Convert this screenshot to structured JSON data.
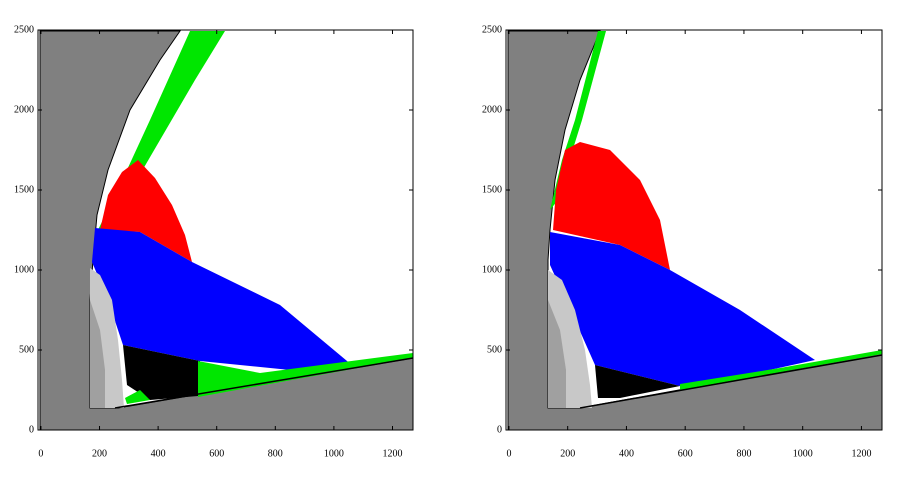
{
  "chart_data": [
    {
      "type": "region",
      "xlim": [
        -10,
        1270
      ],
      "ylim": [
        0,
        2500
      ],
      "xticks": [
        0,
        200,
        400,
        600,
        800,
        1000,
        1200
      ],
      "yticks": [
        0,
        500,
        1000,
        1500,
        2000,
        2500
      ]
    },
    {
      "type": "region",
      "xlim": [
        -10,
        1270
      ],
      "ylim": [
        0,
        2500
      ],
      "xticks": [
        0,
        200,
        400,
        600,
        800,
        1000,
        1200
      ],
      "yticks": [
        0,
        500,
        1000,
        1500,
        2000,
        2500
      ]
    }
  ]
}
